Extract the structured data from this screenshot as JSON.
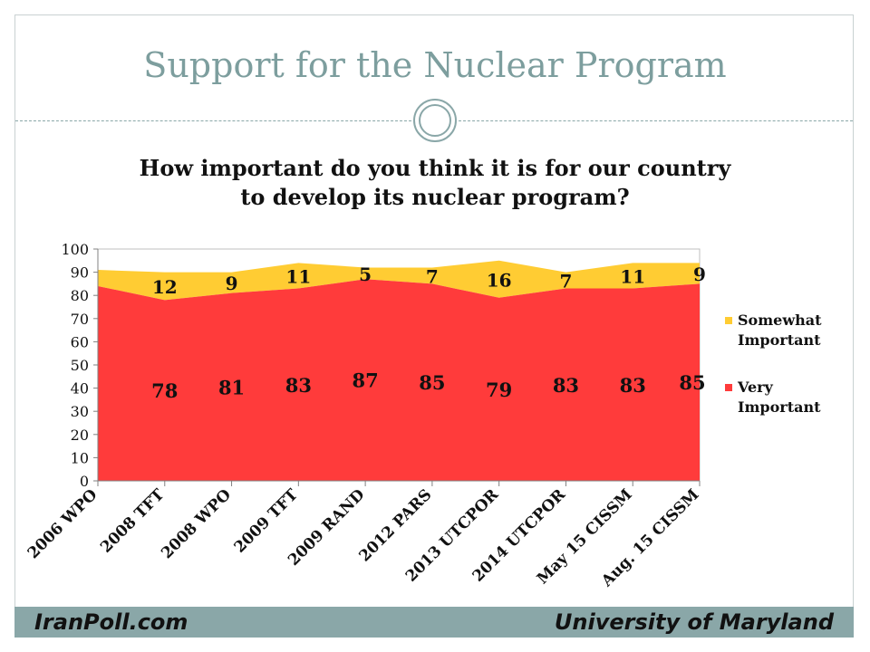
{
  "title": "Support for the Nuclear Program",
  "footer": {
    "left": "IranPoll.com",
    "right": "University of Maryland"
  },
  "chart_data": {
    "type": "area",
    "stacked": true,
    "title": "How important do you think it is for our country to develop its nuclear program?",
    "title_lines": [
      "How important do you think it is for our country",
      "to develop its nuclear program?"
    ],
    "categories": [
      "2006 WPO",
      "2008 TFT",
      "2008 WPO",
      "2009 TFT",
      "2009 RAND",
      "2012 PARS",
      "2013 UTCPOR",
      "2014 UTCPOR",
      "May 15 CISSM",
      "Aug. 15 CISSM"
    ],
    "series": [
      {
        "name": "Very Important",
        "color": "#ff3b3b",
        "values": [
          84,
          78,
          81,
          83,
          87,
          85,
          79,
          83,
          83,
          85
        ],
        "labels": [
          "",
          "78",
          "81",
          "83",
          "87",
          "85",
          "79",
          "83",
          "83",
          "85"
        ]
      },
      {
        "name": "Somewhat Important",
        "color": "#ffcc33",
        "values": [
          7,
          12,
          9,
          11,
          5,
          7,
          16,
          7,
          11,
          9
        ],
        "labels": [
          "",
          "12",
          "9",
          "11",
          "5",
          "7",
          "16",
          "7",
          "11",
          "9"
        ]
      }
    ],
    "ylim": [
      0,
      100
    ],
    "yticks": [
      0,
      10,
      20,
      30,
      40,
      50,
      60,
      70,
      80,
      90,
      100
    ],
    "xlabel": "",
    "ylabel": "",
    "grid": false,
    "legend": "right"
  }
}
